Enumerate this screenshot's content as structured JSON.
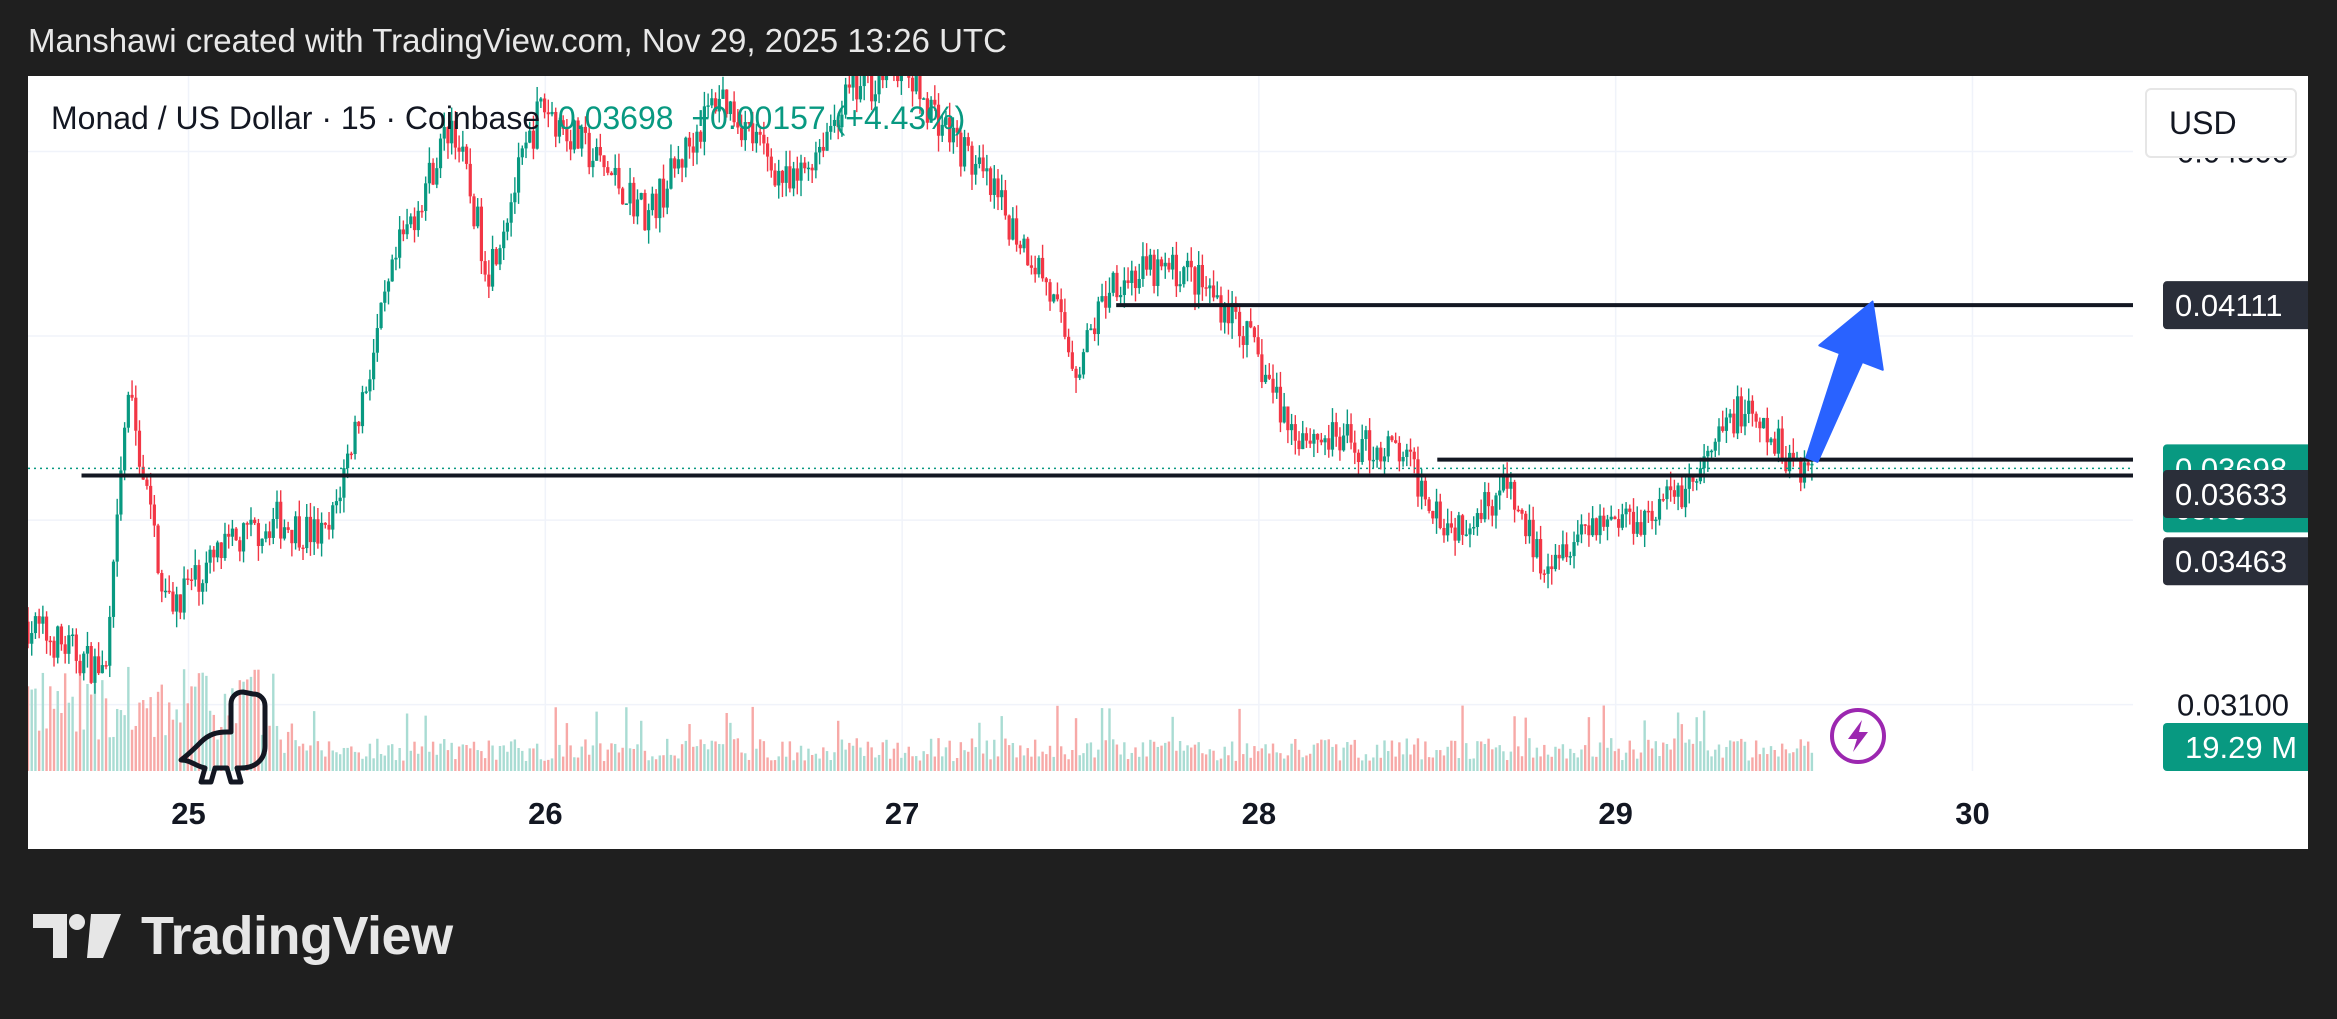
{
  "caption": "Manshawi created with TradingView.com, Nov 29, 2025 13:26 UTC",
  "brand": {
    "name": "TradingView"
  },
  "colors": {
    "up": "#089981",
    "down": "#f23645",
    "up_volume": "#a9dcd3",
    "down_volume": "#f7a9a7",
    "label_dark": "#2a2e39",
    "arrow": "#2962ff",
    "lightning": "#9c27b0"
  },
  "currency_button": "USD",
  "legend": {
    "symbol": "Monad / US Dollar · 15 · Coinbase",
    "price": "0.03698",
    "change": "+0.00157 (+4.43%)"
  },
  "icons": [
    "dino-icon",
    "lightning-icon",
    "arrow-up-icon"
  ],
  "chart_data": {
    "type": "candlestick",
    "interval": "15",
    "exchange": "Coinbase",
    "x_axis": {
      "ticks": [
        "25",
        "26",
        "27",
        "28",
        "29",
        "30"
      ],
      "start_day": 24.55,
      "end_day": 30.45,
      "data_end_day": 29.55
    },
    "y_axis": {
      "ticks": [
        "0.04500",
        "0.03100"
      ],
      "ylim": [
        0.02932,
        0.04691
      ]
    },
    "price_path": [
      {
        "day": 24.55,
        "price": 0.0331
      },
      {
        "day": 24.78,
        "price": 0.0318
      },
      {
        "day": 24.84,
        "price": 0.039
      },
      {
        "day": 24.95,
        "price": 0.0335
      },
      {
        "day": 25.1,
        "price": 0.0348
      },
      {
        "day": 25.25,
        "price": 0.0357
      },
      {
        "day": 25.4,
        "price": 0.0352
      },
      {
        "day": 25.6,
        "price": 0.0425
      },
      {
        "day": 25.75,
        "price": 0.0458
      },
      {
        "day": 25.85,
        "price": 0.042
      },
      {
        "day": 26.0,
        "price": 0.0462
      },
      {
        "day": 26.15,
        "price": 0.0448
      },
      {
        "day": 26.3,
        "price": 0.0434
      },
      {
        "day": 26.5,
        "price": 0.0465
      },
      {
        "day": 26.7,
        "price": 0.044
      },
      {
        "day": 26.85,
        "price": 0.0463
      },
      {
        "day": 27.0,
        "price": 0.0472
      },
      {
        "day": 27.2,
        "price": 0.0448
      },
      {
        "day": 27.4,
        "price": 0.042
      },
      {
        "day": 27.5,
        "price": 0.0395
      },
      {
        "day": 27.6,
        "price": 0.0418
      },
      {
        "day": 27.8,
        "price": 0.042
      },
      {
        "day": 27.95,
        "price": 0.0408
      },
      {
        "day": 28.1,
        "price": 0.038
      },
      {
        "day": 28.2,
        "price": 0.0377
      },
      {
        "day": 28.4,
        "price": 0.0374
      },
      {
        "day": 28.55,
        "price": 0.0355
      },
      {
        "day": 28.7,
        "price": 0.0365
      },
      {
        "day": 28.8,
        "price": 0.0347
      },
      {
        "day": 28.95,
        "price": 0.0357
      },
      {
        "day": 29.1,
        "price": 0.0358
      },
      {
        "day": 29.25,
        "price": 0.0368
      },
      {
        "day": 29.35,
        "price": 0.0385
      },
      {
        "day": 29.45,
        "price": 0.0376
      },
      {
        "day": 29.55,
        "price": 0.03698
      }
    ],
    "horizontal_lines": [
      {
        "price": 0.04111,
        "from_day": 27.6
      },
      {
        "price": 0.0372,
        "from_day": 28.5
      },
      {
        "price": 0.0368,
        "from_day": 24.7
      }
    ],
    "price_labels": [
      {
        "price": 0.04111,
        "text": "0.04111",
        "kind": "dark"
      },
      {
        "price": 0.03698,
        "text": "0.03698",
        "sub": "03:55",
        "kind": "current"
      },
      {
        "price": 0.03633,
        "text": "0.03633",
        "kind": "dark"
      },
      {
        "price": 0.03463,
        "text": "0.03463",
        "kind": "dark"
      }
    ],
    "volume_label": "19.29 M",
    "current_price_line": 0.03698,
    "arrow_annotation": {
      "from": {
        "day": 29.55,
        "price": 0.0372
      },
      "to": {
        "day": 29.72,
        "price": 0.0412
      }
    }
  }
}
